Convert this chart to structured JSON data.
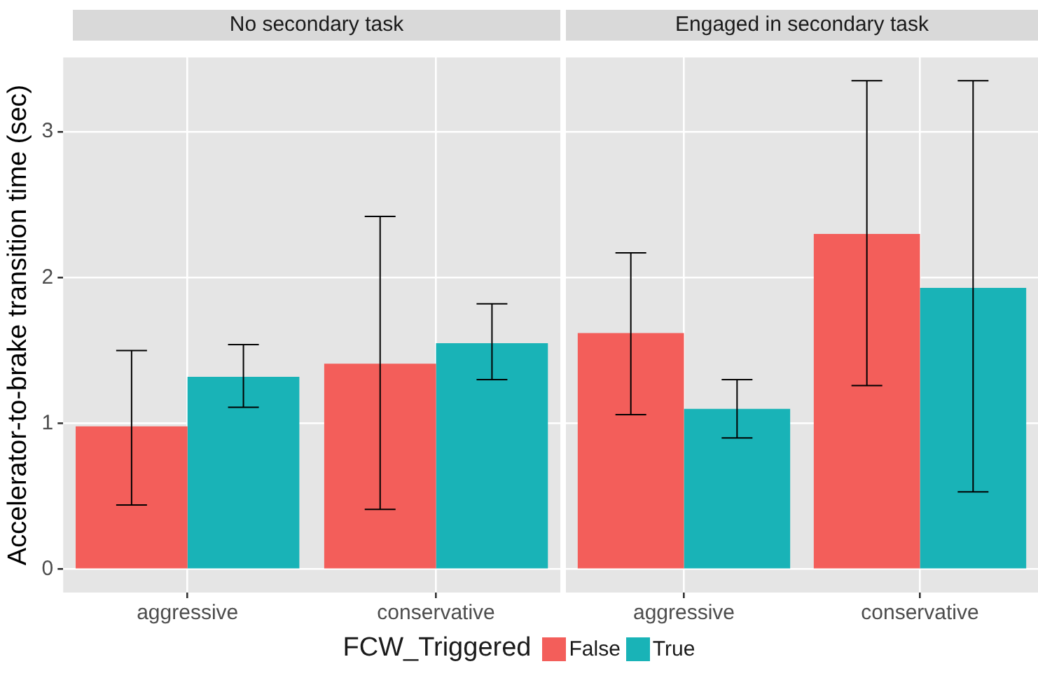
{
  "chart_data": [
    {
      "type": "bar",
      "title": "No secondary task",
      "ylabel": "Accelerator-to-brake transition time (sec)",
      "legend_title": "FCW_Triggered",
      "legend": "bottom",
      "grid": true,
      "categories": [
        "aggressive",
        "conservative"
      ],
      "ylim": [
        -0.16,
        3.51
      ],
      "yticks": [
        0,
        1,
        2,
        3
      ],
      "series": [
        {
          "name": "False",
          "color": "#f35e5a",
          "values": [
            0.98,
            1.41
          ],
          "errors": [
            [
              0.44,
              1.5
            ],
            [
              0.41,
              2.42
            ]
          ]
        },
        {
          "name": "True",
          "color": "#19b3b7",
          "values": [
            1.32,
            1.55
          ],
          "errors": [
            [
              1.11,
              1.54
            ],
            [
              1.3,
              1.82
            ]
          ]
        }
      ]
    },
    {
      "type": "bar",
      "title": "Engaged in secondary task",
      "grid": true,
      "tick_labels": "x",
      "categories": [
        "aggressive",
        "conservative"
      ],
      "ylim": [
        -0.16,
        3.51
      ],
      "yticks": [
        0,
        1,
        2,
        3
      ],
      "series": [
        {
          "color": "#f35e5a",
          "values": [
            1.62,
            2.3
          ],
          "errors": [
            [
              1.06,
              2.17
            ],
            [
              1.26,
              3.35
            ]
          ]
        },
        {
          "color": "#19b3b7",
          "values": [
            1.1,
            1.93
          ],
          "errors": [
            [
              0.9,
              1.3
            ],
            [
              0.53,
              3.35
            ]
          ]
        }
      ]
    }
  ]
}
